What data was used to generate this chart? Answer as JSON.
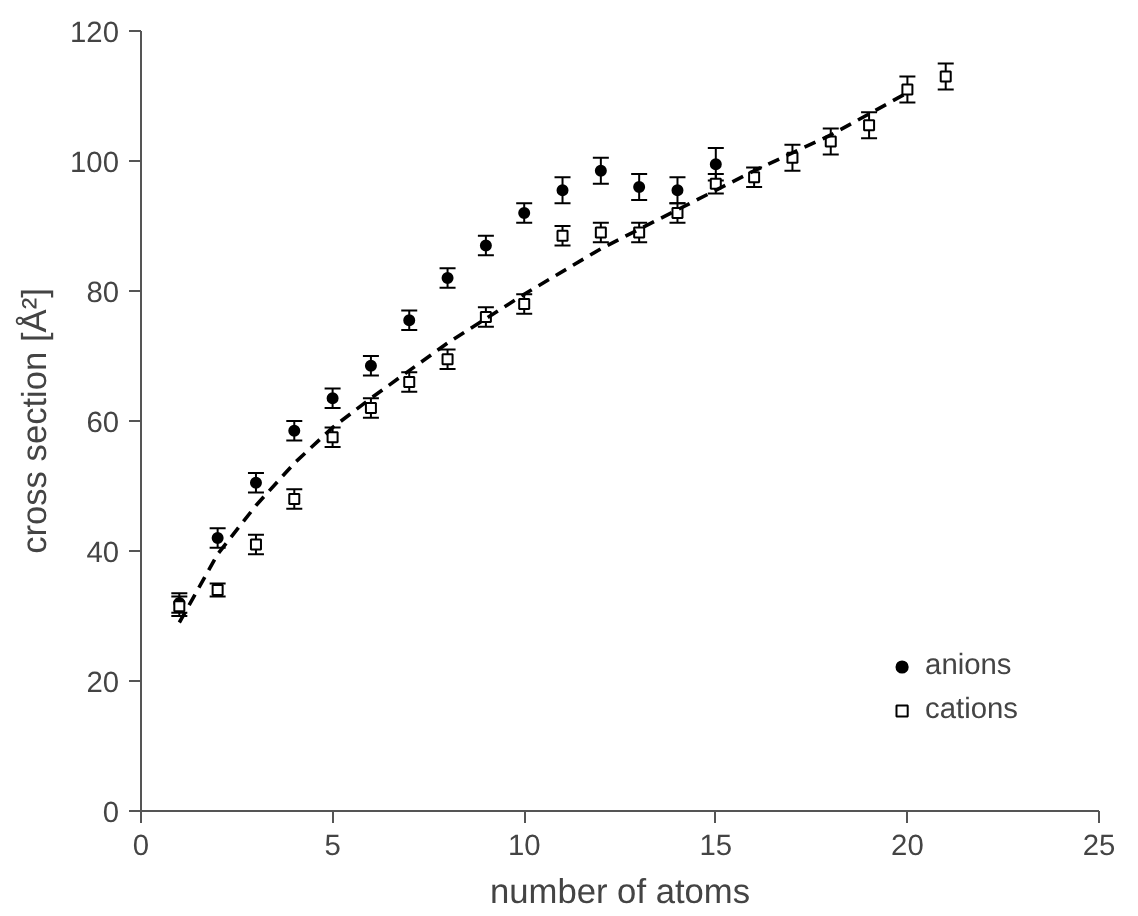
{
  "chart_data": {
    "type": "scatter",
    "xlabel": "number of atoms",
    "ylabel": "cross section [Å²]",
    "xlim": [
      0,
      25
    ],
    "ylim": [
      0,
      120
    ],
    "xticks": [
      0,
      5,
      10,
      15,
      20,
      25
    ],
    "yticks": [
      0,
      20,
      40,
      60,
      80,
      100,
      120
    ],
    "grid": false,
    "legend": "bottom right",
    "series": [
      {
        "name": "anions",
        "color": "#000000",
        "marker": "circle",
        "x": [
          1,
          2,
          3,
          4,
          5,
          6,
          7,
          8,
          9,
          10,
          11,
          12,
          13,
          14,
          15
        ],
        "values": [
          32,
          42,
          50.5,
          58.5,
          63.5,
          68.5,
          75.5,
          82,
          87,
          92,
          95.5,
          98.5,
          96,
          95.5,
          99.5
        ],
        "errors": [
          1.5,
          1.5,
          1.5,
          1.5,
          1.5,
          1.5,
          1.5,
          1.5,
          1.5,
          1.5,
          2,
          2,
          2,
          2,
          2.5
        ]
      },
      {
        "name": "cations",
        "color": "#000000",
        "marker": "square",
        "x": [
          1,
          2,
          3,
          4,
          5,
          6,
          7,
          8,
          9,
          10,
          11,
          12,
          13,
          14,
          15,
          16,
          17,
          18,
          19,
          20,
          21
        ],
        "values": [
          31.5,
          34,
          41,
          48,
          57.5,
          62,
          66,
          69.5,
          76,
          78,
          88.5,
          89,
          89,
          92,
          96.5,
          97.5,
          100.5,
          103,
          105.5,
          111,
          113
        ],
        "errors": [
          1.5,
          1,
          1.5,
          1.5,
          1.5,
          1.5,
          1.5,
          1.5,
          1.5,
          1.5,
          1.5,
          1.5,
          1.5,
          1.5,
          1.5,
          1.5,
          2,
          2,
          2,
          2,
          2
        ]
      },
      {
        "type": "line",
        "color": "#000000",
        "line_style": "dashed",
        "x": [
          1,
          2,
          3,
          4,
          5,
          6,
          8,
          10,
          12,
          14,
          16,
          18,
          20
        ],
        "values": [
          29,
          39.5,
          47,
          53.5,
          59,
          63.5,
          72,
          79.5,
          86.5,
          92.5,
          98.5,
          104,
          110.5
        ]
      }
    ]
  }
}
